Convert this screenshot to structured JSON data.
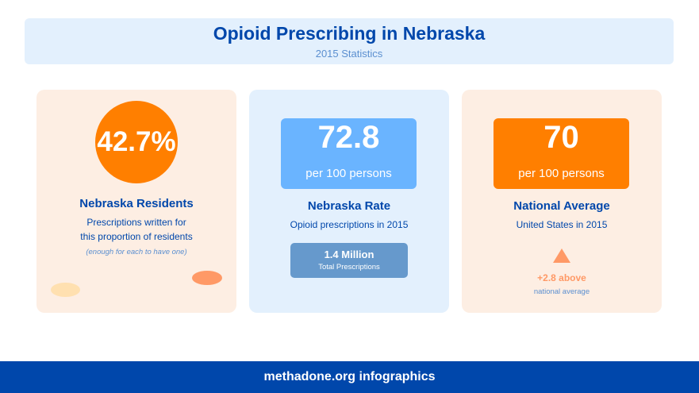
{
  "header": {
    "title": "Opioid Prescribing in Nebraska",
    "subtitle": "2015 Statistics"
  },
  "cards": [
    {
      "value": "42.7%",
      "title": "Nebraska Residents",
      "text_line1": "Prescriptions written for",
      "text_line2": "this proportion of residents",
      "note": "(enough for each to have one)"
    },
    {
      "value": "72.8",
      "unit": "per 100 persons",
      "title": "Nebraska Rate",
      "text": "Opioid prescriptions in 2015",
      "total_value": "1.4 Million",
      "total_label": "Total Prescriptions"
    },
    {
      "value": "70",
      "unit": "per 100 persons",
      "title": "National Average",
      "text": "United States in 2015",
      "diff": "+2.8 above",
      "diff_label": "national average",
      "diff_icon": "triangle-up-icon"
    }
  ],
  "footer": {
    "text": "methadone.org infographics"
  },
  "colors": {
    "primary": "#0047ab",
    "orange": "#ff7f00",
    "light_blue": "#6ab4ff",
    "accent": "#ff9966"
  }
}
